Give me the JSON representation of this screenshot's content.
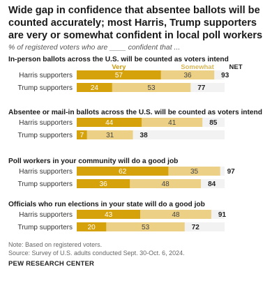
{
  "title": "Wide gap in confidence that absentee ballots will be counted accurately; most Harris, Trump supporters are very or somewhat confident in local poll workers",
  "subtitle": "% of registered voters who are ____ confident that ...",
  "note": "Note: Based on registered voters.",
  "source": "Source: Survey of U.S. adults conducted Sept. 30-Oct. 6, 2024.",
  "brand": "PEW RESEARCH CENTER",
  "colors": {
    "very": "#d6a20c",
    "somewhat": "#ecd085",
    "band": "#f2f2f2",
    "legend_very": "#c99a0c",
    "legend_somewhat": "#d8b75a"
  },
  "chart_data": {
    "type": "bar",
    "stacked": true,
    "legend": {
      "very": "Very",
      "somewhat": "Somewhat",
      "net": "NET"
    },
    "xlim": [
      0,
      100
    ],
    "groups": [
      {
        "title": "In-person ballots across the U.S. will be counted as voters intend",
        "rows": [
          {
            "label": "Harris supporters",
            "very": 57,
            "somewhat": 36,
            "net": 93
          },
          {
            "label": "Trump supporters",
            "very": 24,
            "somewhat": 53,
            "net": 77
          }
        ]
      },
      {
        "title": "Absentee or mail-in ballots across the U.S. will be counted as voters intend",
        "rows": [
          {
            "label": "Harris supporters",
            "very": 44,
            "somewhat": 41,
            "net": 85
          },
          {
            "label": "Trump supporters",
            "very": 7,
            "somewhat": 31,
            "net": 38
          }
        ]
      },
      {
        "title": "Poll workers in your community will do a good job",
        "rows": [
          {
            "label": "Harris supporters",
            "very": 62,
            "somewhat": 35,
            "net": 97
          },
          {
            "label": "Trump supporters",
            "very": 36,
            "somewhat": 48,
            "net": 84
          }
        ]
      },
      {
        "title": "Officials who run elections in your state will do a good job",
        "rows": [
          {
            "label": "Harris supporters",
            "very": 43,
            "somewhat": 48,
            "net": 91
          },
          {
            "label": "Trump supporters",
            "very": 20,
            "somewhat": 53,
            "net": 72
          }
        ]
      }
    ]
  }
}
